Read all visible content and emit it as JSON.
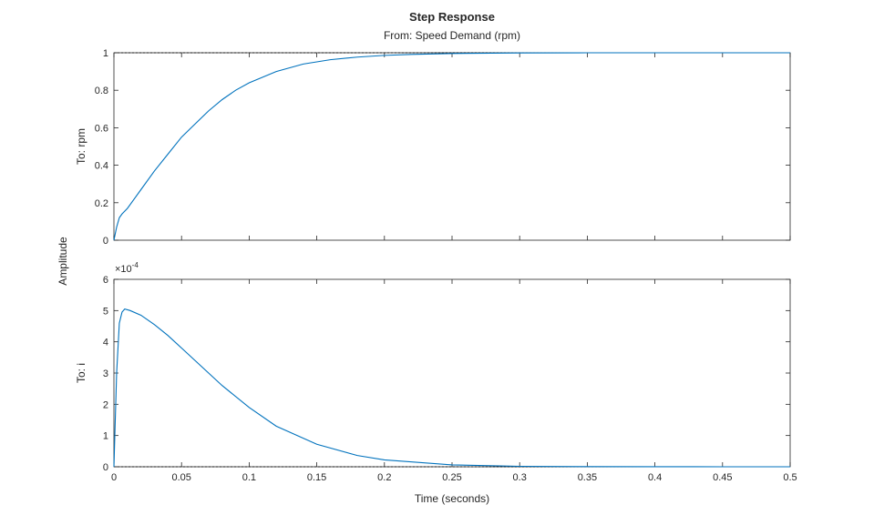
{
  "chart_data": {
    "type": "line",
    "title": "Step Response",
    "subtitle": "From: Speed Demand (rpm)",
    "xlabel": "Time (seconds)",
    "ylabel": "Amplitude",
    "xlim": [
      0,
      0.5
    ],
    "xticks": [
      "0",
      "0.05",
      "0.1",
      "0.15",
      "0.2",
      "0.25",
      "0.3",
      "0.35",
      "0.4",
      "0.45",
      "0.5"
    ],
    "grid": false,
    "line_color": "#0072BD",
    "reference_color": "#000000",
    "panels": [
      {
        "ylabel": "To: rpm",
        "ylim": [
          0,
          1
        ],
        "yticks": [
          "0",
          "0.2",
          "0.4",
          "0.6",
          "0.8",
          "1"
        ],
        "exponent_label": "",
        "reference_value": 1,
        "x": [
          0,
          0.002,
          0.004,
          0.006,
          0.01,
          0.015,
          0.02,
          0.03,
          0.04,
          0.05,
          0.06,
          0.07,
          0.08,
          0.09,
          0.1,
          0.12,
          0.14,
          0.16,
          0.18,
          0.2,
          0.22,
          0.25,
          0.3,
          0.35,
          0.4,
          0.45,
          0.5
        ],
        "y": [
          0,
          0.07,
          0.12,
          0.14,
          0.17,
          0.22,
          0.27,
          0.37,
          0.46,
          0.55,
          0.62,
          0.69,
          0.75,
          0.8,
          0.84,
          0.9,
          0.94,
          0.963,
          0.977,
          0.986,
          0.991,
          0.996,
          0.999,
          1.0,
          1.0,
          1.0,
          1.0
        ]
      },
      {
        "ylabel": "To: i",
        "ylim": [
          0,
          6
        ],
        "yticks": [
          "0",
          "1",
          "2",
          "3",
          "4",
          "5",
          "6"
        ],
        "exponent_label": "×10",
        "exponent_power": "-4",
        "reference_value": 0,
        "x": [
          0,
          0.002,
          0.004,
          0.006,
          0.008,
          0.012,
          0.02,
          0.03,
          0.04,
          0.05,
          0.06,
          0.07,
          0.08,
          0.1,
          0.12,
          0.15,
          0.18,
          0.2,
          0.25,
          0.3,
          0.35,
          0.4,
          0.45,
          0.5
        ],
        "y": [
          0,
          3.0,
          4.6,
          4.95,
          5.05,
          5.0,
          4.85,
          4.55,
          4.2,
          3.8,
          3.4,
          3.0,
          2.6,
          1.9,
          1.3,
          0.72,
          0.36,
          0.22,
          0.06,
          0.015,
          0.004,
          0.001,
          0.0003,
          0.0001
        ]
      }
    ]
  }
}
